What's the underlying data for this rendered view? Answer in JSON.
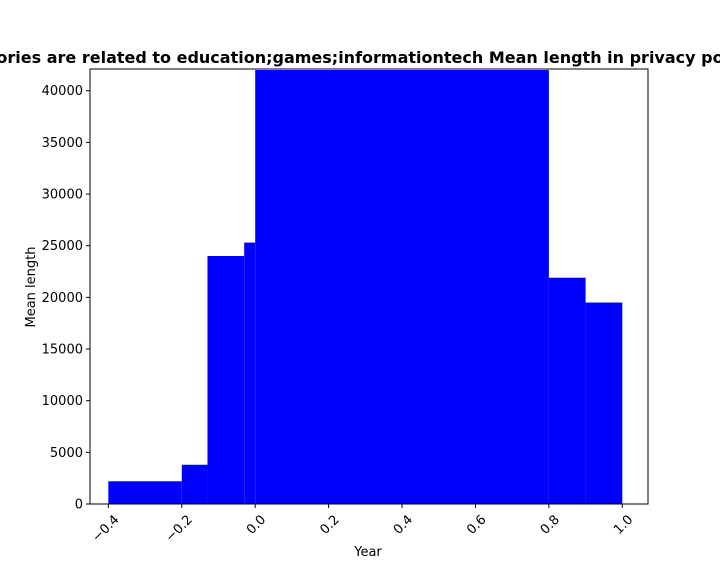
{
  "chart_data": {
    "type": "bar",
    "title": "ories are related to education;games;informationtech Mean length in privacy po",
    "xlabel": "Year",
    "ylabel": "Mean length",
    "xlim": [
      -0.45,
      1.07
    ],
    "ylim": [
      0,
      42100
    ],
    "grid": false,
    "bar_color": "#0000ff",
    "x_ticks": [
      {
        "value": -0.4,
        "label": "−0.4"
      },
      {
        "value": -0.2,
        "label": "−0.2"
      },
      {
        "value": 0.0,
        "label": "0.0"
      },
      {
        "value": 0.2,
        "label": "0.2"
      },
      {
        "value": 0.4,
        "label": "0.4"
      },
      {
        "value": 0.6,
        "label": "0.6"
      },
      {
        "value": 0.8,
        "label": "0.8"
      },
      {
        "value": 1.0,
        "label": "1.0"
      }
    ],
    "y_ticks": [
      {
        "value": 0,
        "label": "0"
      },
      {
        "value": 5000,
        "label": "5000"
      },
      {
        "value": 10000,
        "label": "10000"
      },
      {
        "value": 15000,
        "label": "15000"
      },
      {
        "value": 20000,
        "label": "20000"
      },
      {
        "value": 25000,
        "label": "25000"
      },
      {
        "value": 30000,
        "label": "30000"
      },
      {
        "value": 35000,
        "label": "35000"
      },
      {
        "value": 40000,
        "label": "40000"
      }
    ],
    "bars": [
      {
        "x0": -0.4,
        "x1": -0.2,
        "value": 2200
      },
      {
        "x0": -0.2,
        "x1": -0.13,
        "value": 3800
      },
      {
        "x0": -0.13,
        "x1": -0.03,
        "value": 24000
      },
      {
        "x0": -0.03,
        "x1": 0.0,
        "value": 25300
      },
      {
        "x0": 0.0,
        "x1": 0.8,
        "value": 42000
      },
      {
        "x0": 0.8,
        "x1": 0.9,
        "value": 21900
      },
      {
        "x0": 0.9,
        "x1": 1.0,
        "value": 19500
      }
    ]
  }
}
